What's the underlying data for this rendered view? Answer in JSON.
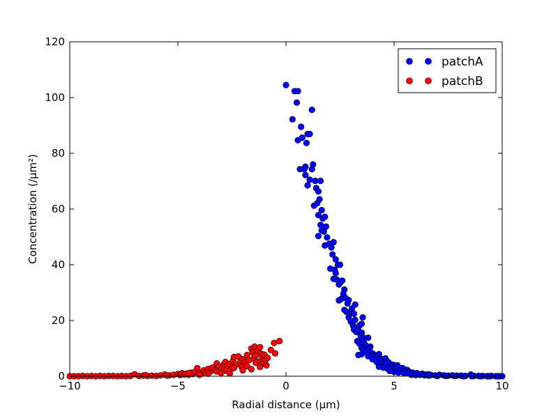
{
  "chart_data": {
    "type": "scatter",
    "title": "",
    "xlabel": "Radial distance (μm)",
    "ylabel": "Concentration (/μm²)",
    "xlim": [
      -10,
      10
    ],
    "ylim": [
      0,
      120
    ],
    "x_ticks": [
      -10,
      -5,
      0,
      5,
      10
    ],
    "y_ticks": [
      0,
      20,
      40,
      60,
      80,
      100,
      120
    ],
    "x_tick_labels": [
      "−10",
      "−5",
      "0",
      "5",
      "10"
    ],
    "y_tick_labels": [
      "0",
      "20",
      "40",
      "60",
      "80",
      "100",
      "120"
    ],
    "grid": false,
    "legend_position": "top-right",
    "series": [
      {
        "name": "patchA",
        "color": "#0000ff",
        "points": [
          [
            0.0,
            104.5
          ],
          [
            0.3,
            92.2
          ],
          [
            0.4,
            102.3
          ],
          [
            0.55,
            102.3
          ],
          [
            0.5,
            98.2
          ],
          [
            0.55,
            84.7
          ],
          [
            0.7,
            89.5
          ],
          [
            0.75,
            85.6
          ],
          [
            0.9,
            75.2
          ],
          [
            0.85,
            74.3
          ],
          [
            0.95,
            83.7
          ],
          [
            1.0,
            86.9
          ],
          [
            1.1,
            86.9
          ],
          [
            1.2,
            95.6
          ],
          [
            0.65,
            74.3
          ],
          [
            0.9,
            72.2
          ],
          [
            1.0,
            68.5
          ],
          [
            1.1,
            70.5
          ],
          [
            1.2,
            74.3
          ],
          [
            1.25,
            76.0
          ],
          [
            1.35,
            70.1
          ],
          [
            1.4,
            67.5
          ],
          [
            1.5,
            66.3
          ],
          [
            1.6,
            70.1
          ],
          [
            1.3,
            61.2
          ],
          [
            1.45,
            62.1
          ],
          [
            1.55,
            63.5
          ],
          [
            1.65,
            59.6
          ],
          [
            1.7,
            56.6
          ],
          [
            1.8,
            57.2
          ],
          [
            1.5,
            57.8
          ],
          [
            1.6,
            54.3
          ],
          [
            1.75,
            51.9
          ],
          [
            1.85,
            53.7
          ],
          [
            1.9,
            49.8
          ],
          [
            1.5,
            50.3
          ],
          [
            1.65,
            52.3
          ],
          [
            1.8,
            46.9
          ],
          [
            2.0,
            47.5
          ],
          [
            2.1,
            46.2
          ],
          [
            2.15,
            43.7
          ],
          [
            2.2,
            48.1
          ],
          [
            2.3,
            41.9
          ],
          [
            2.05,
            38.6
          ],
          [
            2.25,
            38.2
          ],
          [
            2.4,
            40.0
          ],
          [
            2.5,
            40.0
          ],
          [
            2.3,
            37.0
          ],
          [
            2.2,
            34.9
          ],
          [
            2.35,
            34.7
          ],
          [
            2.45,
            32.9
          ],
          [
            2.5,
            33.5
          ],
          [
            2.6,
            34.3
          ],
          [
            2.7,
            31.1
          ],
          [
            2.45,
            27.2
          ],
          [
            2.55,
            27.7
          ],
          [
            2.65,
            29.5
          ],
          [
            2.75,
            28.1
          ],
          [
            2.85,
            26.1
          ],
          [
            2.9,
            27.3
          ],
          [
            2.7,
            23.8
          ],
          [
            2.8,
            23.1
          ],
          [
            2.95,
            22.4
          ],
          [
            3.05,
            24.3
          ],
          [
            3.15,
            22.4
          ],
          [
            3.2,
            25.7
          ],
          [
            2.9,
            21.1
          ],
          [
            3.0,
            19.6
          ],
          [
            3.1,
            18.2
          ],
          [
            3.2,
            20.2
          ],
          [
            3.3,
            17.5
          ],
          [
            3.4,
            18.2
          ],
          [
            3.5,
            18.8
          ],
          [
            3.55,
            21.1
          ],
          [
            3.15,
            16.7
          ],
          [
            3.25,
            15.9
          ],
          [
            3.35,
            16.4
          ],
          [
            3.45,
            14.6
          ],
          [
            3.5,
            15.6
          ],
          [
            3.6,
            13.8
          ],
          [
            3.3,
            12.6
          ],
          [
            3.4,
            11.7
          ],
          [
            3.5,
            12.9
          ],
          [
            3.6,
            12.1
          ],
          [
            3.7,
            11.0
          ],
          [
            3.8,
            13.8
          ],
          [
            3.9,
            10.6
          ],
          [
            3.5,
            10.1
          ],
          [
            3.6,
            9.5
          ],
          [
            3.7,
            8.9
          ],
          [
            3.85,
            9.9
          ],
          [
            3.95,
            8.4
          ],
          [
            4.05,
            7.9
          ],
          [
            3.35,
            7.6
          ],
          [
            3.5,
            7.9
          ],
          [
            3.8,
            7.2
          ],
          [
            4.1,
            7.5
          ],
          [
            4.2,
            6.8
          ],
          [
            4.3,
            7.9
          ],
          [
            4.4,
            6.2
          ],
          [
            4.5,
            5.8
          ],
          [
            4.6,
            6.4
          ],
          [
            4.7,
            5.2
          ],
          [
            4.0,
            6.1
          ],
          [
            4.2,
            5.1
          ],
          [
            4.35,
            5.8
          ],
          [
            4.45,
            4.6
          ],
          [
            4.6,
            4.4
          ],
          [
            4.75,
            4.9
          ],
          [
            4.85,
            3.6
          ],
          [
            4.95,
            4.1
          ],
          [
            5.05,
            3.4
          ],
          [
            5.15,
            3.9
          ],
          [
            5.25,
            3.0
          ],
          [
            4.3,
            3.4
          ],
          [
            4.5,
            3.1
          ],
          [
            4.7,
            2.7
          ],
          [
            4.9,
            3.0
          ],
          [
            5.1,
            2.4
          ],
          [
            5.3,
            2.2
          ],
          [
            5.4,
            2.9
          ],
          [
            5.5,
            1.9
          ],
          [
            5.6,
            2.3
          ],
          [
            5.7,
            1.6
          ],
          [
            4.8,
            1.9
          ],
          [
            5.0,
            1.6
          ],
          [
            5.2,
            1.3
          ],
          [
            5.45,
            1.2
          ],
          [
            5.65,
            1.1
          ],
          [
            5.85,
            1.3
          ],
          [
            5.95,
            0.9
          ],
          [
            6.05,
            1.1
          ],
          [
            6.15,
            0.7
          ],
          [
            6.3,
            0.9
          ],
          [
            6.45,
            0.6
          ],
          [
            6.6,
            0.7
          ],
          [
            5.8,
            0.5
          ],
          [
            6.0,
            0.4
          ],
          [
            6.2,
            0.5
          ],
          [
            6.4,
            0.3
          ],
          [
            6.7,
            0.4
          ],
          [
            6.9,
            0.3
          ],
          [
            7.1,
            0.5
          ],
          [
            7.3,
            0.3
          ],
          [
            7.5,
            0.2
          ],
          [
            7.7,
            0.3
          ],
          [
            7.9,
            0.2
          ],
          [
            8.1,
            0.2
          ],
          [
            8.3,
            0.1
          ],
          [
            8.55,
            0.6
          ],
          [
            8.7,
            0.1
          ],
          [
            8.9,
            0.1
          ],
          [
            9.1,
            0.1
          ],
          [
            9.3,
            0.0
          ],
          [
            9.5,
            0.1
          ],
          [
            9.7,
            0.0
          ],
          [
            9.85,
            0.0
          ],
          [
            10.0,
            0.0
          ],
          [
            6.6,
            0.2
          ],
          [
            7.0,
            0.1
          ],
          [
            7.4,
            0.1
          ],
          [
            7.8,
            0.1
          ],
          [
            8.2,
            0.0
          ],
          [
            8.6,
            0.0
          ],
          [
            9.0,
            0.0
          ],
          [
            9.4,
            0.0
          ],
          [
            9.8,
            0.0
          ]
        ]
      },
      {
        "name": "patchB",
        "color": "#ff0000",
        "points": [
          [
            -10.0,
            0.0
          ],
          [
            -9.8,
            0.0
          ],
          [
            -9.6,
            0.0
          ],
          [
            -9.4,
            0.1
          ],
          [
            -9.2,
            0.0
          ],
          [
            -9.0,
            0.1
          ],
          [
            -8.8,
            0.0
          ],
          [
            -8.6,
            0.1
          ],
          [
            -8.4,
            0.0
          ],
          [
            -8.2,
            0.1
          ],
          [
            -8.0,
            0.1
          ],
          [
            -7.8,
            0.0
          ],
          [
            -7.6,
            0.1
          ],
          [
            -7.4,
            0.0
          ],
          [
            -7.2,
            0.1
          ],
          [
            -7.0,
            0.7
          ],
          [
            -6.8,
            0.1
          ],
          [
            -6.6,
            0.2
          ],
          [
            -6.4,
            0.1
          ],
          [
            -6.2,
            0.2
          ],
          [
            -6.0,
            0.1
          ],
          [
            -5.8,
            0.3
          ],
          [
            -5.6,
            0.6
          ],
          [
            -5.4,
            0.3
          ],
          [
            -5.2,
            0.5
          ],
          [
            -5.0,
            0.8
          ],
          [
            -4.9,
            0.4
          ],
          [
            -4.8,
            1.1
          ],
          [
            -4.7,
            0.6
          ],
          [
            -4.6,
            0.9
          ],
          [
            -4.5,
            0.5
          ],
          [
            -4.4,
            1.3
          ],
          [
            -4.3,
            0.8
          ],
          [
            -4.2,
            1.6
          ],
          [
            -4.1,
            2.9
          ],
          [
            -4.0,
            1.2
          ],
          [
            -3.9,
            0.9
          ],
          [
            -3.8,
            2.1
          ],
          [
            -3.7,
            1.4
          ],
          [
            -3.6,
            2.6
          ],
          [
            -3.5,
            1.7
          ],
          [
            -3.4,
            3.1
          ],
          [
            -3.3,
            2.2
          ],
          [
            -3.2,
            4.6
          ],
          [
            -3.1,
            3.4
          ],
          [
            -3.0,
            2.4
          ],
          [
            -2.9,
            4.1
          ],
          [
            -2.85,
            2.9
          ],
          [
            -2.8,
            5.1
          ],
          [
            -2.7,
            3.6
          ],
          [
            -2.6,
            4.4
          ],
          [
            -2.5,
            2.8
          ],
          [
            -2.45,
            5.6
          ],
          [
            -2.4,
            6.9
          ],
          [
            -2.3,
            4.2
          ],
          [
            -2.2,
            7.1
          ],
          [
            -2.1,
            5.4
          ],
          [
            -2.05,
            3.3
          ],
          [
            -2.0,
            6.1
          ],
          [
            -1.9,
            4.9
          ],
          [
            -1.8,
            7.6
          ],
          [
            -1.7,
            5.8
          ],
          [
            -1.6,
            9.9
          ],
          [
            -1.55,
            8.6
          ],
          [
            -1.5,
            6.4
          ],
          [
            -1.45,
            10.6
          ],
          [
            -1.4,
            7.4
          ],
          [
            -1.3,
            9.2
          ],
          [
            -1.25,
            5.3
          ],
          [
            -1.2,
            10.4
          ],
          [
            -1.15,
            8.1
          ],
          [
            -1.1,
            6.9
          ],
          [
            -1.05,
            4.6
          ],
          [
            -1.0,
            7.7
          ],
          [
            -0.95,
            5.9
          ],
          [
            -0.9,
            3.9
          ],
          [
            -0.85,
            6.6
          ],
          [
            -0.7,
            9.4
          ],
          [
            -0.55,
            11.9
          ],
          [
            -0.5,
            8.2
          ],
          [
            -0.3,
            12.6
          ],
          [
            -3.6,
            0.9
          ],
          [
            -3.2,
            1.7
          ],
          [
            -2.8,
            2.0
          ],
          [
            -2.4,
            3.0
          ],
          [
            -2.0,
            2.1
          ],
          [
            -1.8,
            3.6
          ],
          [
            -1.6,
            2.5
          ],
          [
            -1.4,
            4.8
          ],
          [
            -1.2,
            3.3
          ],
          [
            -4.5,
            1.1
          ],
          [
            -4.0,
            0.5
          ],
          [
            -3.0,
            1.2
          ],
          [
            -2.6,
            1.0
          ],
          [
            -5.5,
            0.2
          ],
          [
            -6.5,
            0.4
          ]
        ]
      }
    ]
  }
}
